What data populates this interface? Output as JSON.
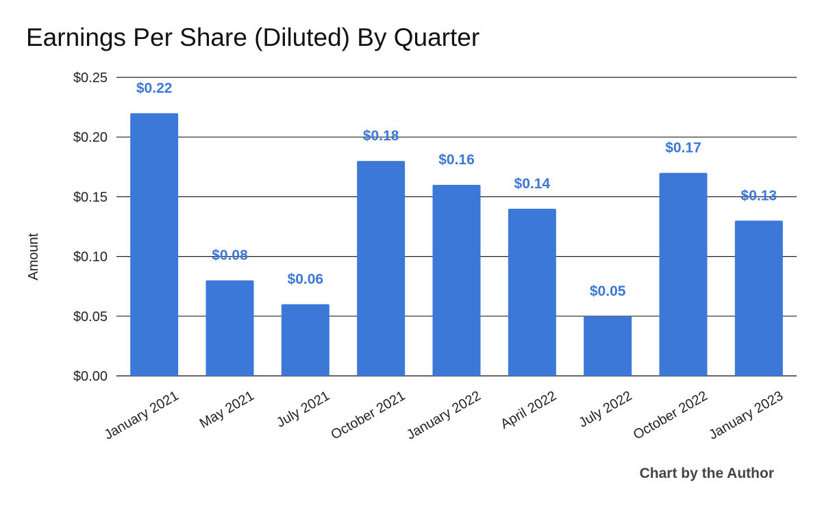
{
  "chart_data": {
    "type": "bar",
    "title": "Earnings Per Share (Diluted) By Quarter",
    "xlabel": "",
    "ylabel": "Amount",
    "categories": [
      "January 2021",
      "May 2021",
      "July 2021",
      "October 2021",
      "January 2022",
      "April 2022",
      "July 2022",
      "October 2022",
      "January 2023"
    ],
    "values": [
      0.22,
      0.08,
      0.06,
      0.18,
      0.16,
      0.14,
      0.05,
      0.17,
      0.13
    ],
    "data_labels": [
      "$0.22",
      "$0.08",
      "$0.06",
      "$0.18",
      "$0.16",
      "$0.14",
      "$0.05",
      "$0.17",
      "$0.13"
    ],
    "ylim": [
      0,
      0.25
    ],
    "yticks": [
      0,
      0.05,
      0.1,
      0.15,
      0.2,
      0.25
    ],
    "ytick_labels": [
      "$0.00",
      "$0.05",
      "$0.10",
      "$0.15",
      "$0.20",
      "$0.25"
    ],
    "grid": true,
    "legend": false,
    "bar_color": "#3c78d8",
    "label_color": "#3c78d8",
    "credit": "Chart by the Author"
  }
}
